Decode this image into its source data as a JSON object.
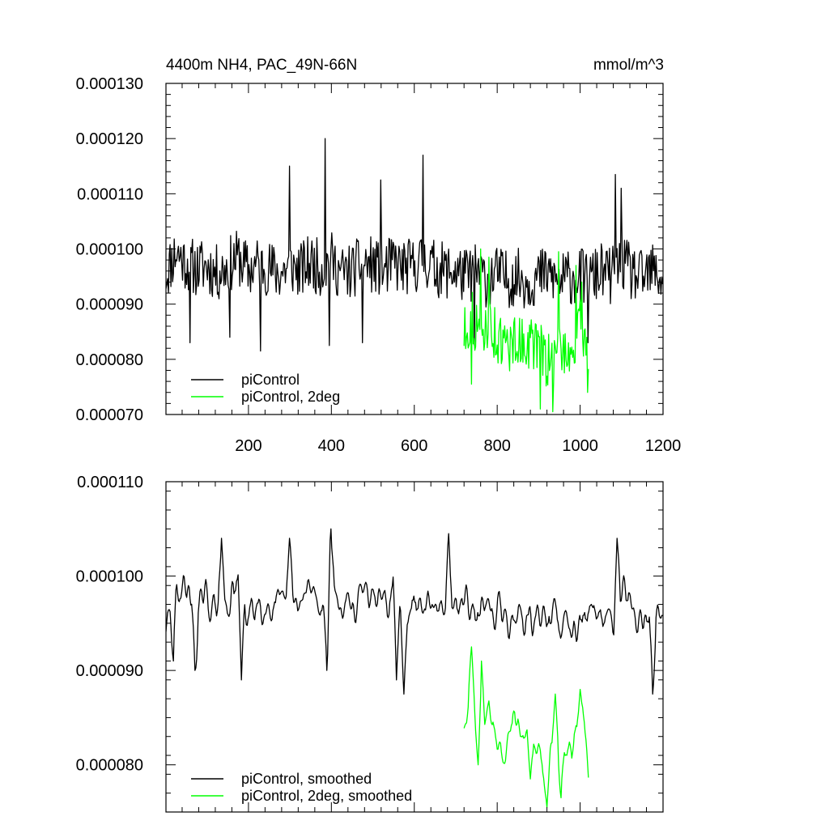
{
  "chart_data": [
    {
      "type": "line",
      "title": "4400m NH4, PAC_49N-66N",
      "units": "mmol/m^3",
      "xlim": [
        1,
        1200
      ],
      "ylim": [
        7e-05,
        0.00013
      ],
      "x_ticks": [
        200,
        400,
        600,
        800,
        1000,
        1200
      ],
      "x_tick_labels": [
        "200",
        "400",
        "600",
        "800",
        "1000",
        "1200"
      ],
      "y_ticks": [
        7e-05,
        8e-05,
        9e-05,
        0.0001,
        0.00011,
        0.00012,
        0.00013
      ],
      "y_tick_labels": [
        "0.000070",
        "0.000080",
        "0.000090",
        "0.000100",
        "0.000110",
        "0.000120",
        "0.000130"
      ],
      "grid": false,
      "legend_position": "bottom-left",
      "series": [
        {
          "name": "piControl",
          "color": "#000000",
          "x": [
            1,
            25,
            50,
            75,
            100,
            125,
            150,
            175,
            200,
            225,
            250,
            275,
            300,
            325,
            350,
            375,
            400,
            425,
            450,
            475,
            500,
            525,
            550,
            575,
            600,
            625,
            650,
            675,
            700,
            725,
            750,
            775,
            800,
            825,
            850,
            875,
            900,
            925,
            950,
            975,
            1000,
            1025,
            1050,
            1075,
            1100,
            1125,
            1150,
            1175,
            1200
          ],
          "values": [
            9.55e-05,
            9.95e-05,
            9.75e-05,
            9.65e-05,
            9.7e-05,
            9.55e-05,
            9.7e-05,
            9.85e-05,
            9.6e-05,
            9.75e-05,
            9.65e-05,
            9.55e-05,
            9.7e-05,
            9.6e-05,
            9.75e-05,
            9.65e-05,
            9.8e-05,
            9.55e-05,
            9.6e-05,
            9.75e-05,
            9.7e-05,
            9.6e-05,
            9.75e-05,
            9.65e-05,
            9.7e-05,
            9.8e-05,
            9.65e-05,
            9.6e-05,
            9.6e-05,
            9.5e-05,
            9.6e-05,
            9.45e-05,
            9.55e-05,
            9.45e-05,
            9.5e-05,
            9.4e-05,
            9.5e-05,
            9.55e-05,
            9.4e-05,
            9.5e-05,
            9.5e-05,
            9.45e-05,
            9.6e-05,
            9.5e-05,
            9.75e-05,
            9.55e-05,
            9.45e-05,
            9.6e-05,
            9.45e-05
          ],
          "noise": 5.2e-06,
          "spikes": [
            [
              385,
              0.00012
            ],
            [
              622,
              0.000117
            ],
            [
              520,
              0.0001125
            ],
            [
              300,
              0.000115
            ],
            [
              1086,
              0.0001135
            ],
            [
              1100,
              0.000111
            ],
            [
              60,
              8.3e-05
            ],
            [
              155,
              8.4e-05
            ],
            [
              230,
              8.15e-05
            ],
            [
              395,
              8.25e-05
            ],
            [
              475,
              8.3e-05
            ],
            [
              745,
              8.25e-05
            ],
            [
              1020,
              8.3e-05
            ]
          ]
        },
        {
          "name": "piControl, 2deg",
          "color": "#00ff00",
          "x": [
            720,
            740,
            760,
            780,
            800,
            820,
            840,
            860,
            880,
            900,
            920,
            940,
            960,
            980,
            1000,
            1020
          ],
          "values": [
            8.5e-05,
            8.75e-05,
            8.4e-05,
            8.75e-05,
            8.35e-05,
            8.2e-05,
            8.35e-05,
            8.3e-05,
            8.3e-05,
            8.25e-05,
            7.95e-05,
            8.05e-05,
            8.25e-05,
            8.1e-05,
            8.6e-05,
            8.15e-05
          ],
          "noise": 5e-06,
          "spikes": [
            [
              760,
              0.0001
            ],
            [
              780,
              9.85e-05
            ],
            [
              948,
              9.95e-05
            ],
            [
              990,
              9.7e-05
            ],
            [
              1005,
              9.4e-05
            ],
            [
              738,
              7.55e-05
            ],
            [
              905,
              7.1e-05
            ],
            [
              935,
              7.05e-05
            ],
            [
              1018,
              7.4e-05
            ]
          ]
        }
      ]
    },
    {
      "type": "line",
      "xlim": [
        1,
        1200
      ],
      "ylim": [
        7.5e-05,
        0.00011
      ],
      "x_ticks": [
        200,
        400,
        600,
        800,
        1000,
        1200
      ],
      "y_ticks": [
        8e-05,
        9e-05,
        0.0001,
        0.00011
      ],
      "y_tick_labels": [
        "0.000080",
        "0.000090",
        "0.000100",
        "0.000110"
      ],
      "grid": false,
      "legend_position": "bottom-left",
      "series": [
        {
          "name": "piControl, smoothed",
          "color": "#000000",
          "x": [
            1,
            25,
            50,
            75,
            100,
            125,
            150,
            175,
            200,
            225,
            250,
            275,
            300,
            325,
            350,
            375,
            400,
            425,
            450,
            475,
            500,
            525,
            550,
            575,
            600,
            625,
            650,
            675,
            700,
            725,
            750,
            775,
            800,
            825,
            850,
            875,
            900,
            925,
            950,
            975,
            1000,
            1025,
            1050,
            1075,
            1100,
            1125,
            1150,
            1175,
            1200
          ],
          "values": [
            9.4e-05,
            9.85e-05,
            9.9e-05,
            9.6e-05,
            9.75e-05,
            9.65e-05,
            9.7e-05,
            9.9e-05,
            9.55e-05,
            9.75e-05,
            9.7e-05,
            9.6e-05,
            9.8e-05,
            9.65e-05,
            9.9e-05,
            9.7e-05,
            9.9e-05,
            9.65e-05,
            9.65e-05,
            9.8e-05,
            9.8e-05,
            9.65e-05,
            9.85e-05,
            9.65e-05,
            9.75e-05,
            9.85e-05,
            9.65e-05,
            9.7e-05,
            9.6e-05,
            9.8e-05,
            9.7e-05,
            9.55e-05,
            9.65e-05,
            9.5e-05,
            9.6e-05,
            9.5e-05,
            9.55e-05,
            9.6e-05,
            9.5e-05,
            9.5e-05,
            9.55e-05,
            9.45e-05,
            9.6e-05,
            9.5e-05,
            9.95e-05,
            9.65e-05,
            9.4e-05,
            9.65e-05,
            9.65e-05
          ],
          "noise": 2.5e-06,
          "spikes": [
            [
              400,
              0.000105
            ],
            [
              683,
              0.0001045
            ],
            [
              300,
              0.000104
            ],
            [
              1090,
              0.000104
            ],
            [
              135,
              0.000104
            ],
            [
              20,
              9.1e-05
            ],
            [
              72,
              9e-05
            ],
            [
              183,
              8.9e-05
            ],
            [
              390,
              9e-05
            ],
            [
              557,
              8.9e-05
            ],
            [
              575,
              8.75e-05
            ],
            [
              1175,
              8.75e-05
            ]
          ]
        },
        {
          "name": "piControl, 2deg, smoothed",
          "color": "#00ff00",
          "x": [
            720,
            740,
            760,
            780,
            800,
            820,
            840,
            860,
            880,
            900,
            920,
            940,
            960,
            980,
            1000,
            1020
          ],
          "values": [
            8.45e-05,
            8.75e-05,
            8.3e-05,
            8.7e-05,
            8.15e-05,
            8.2e-05,
            8.55e-05,
            8.45e-05,
            8.45e-05,
            8.1e-05,
            7.9e-05,
            8.35e-05,
            8.15e-05,
            8.1e-05,
            8.7e-05,
            8e-05
          ],
          "noise": 1.8e-06,
          "spikes": [
            [
              738,
              9.25e-05
            ],
            [
              763,
              9.1e-05
            ],
            [
              940,
              8.75e-05
            ],
            [
              1000,
              8.8e-05
            ],
            [
              755,
              8e-05
            ],
            [
              880,
              7.85e-05
            ],
            [
              920,
              7.55e-05
            ],
            [
              955,
              7.65e-05
            ]
          ]
        }
      ]
    }
  ]
}
